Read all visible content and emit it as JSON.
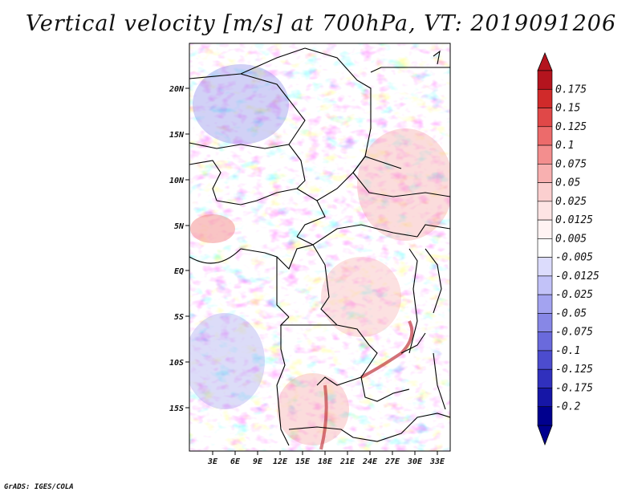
{
  "title": "Vertical velocity [m/s] at 700hPa, VT: 2019091206",
  "footer": "GrADS: IGES/COLA",
  "map": {
    "lat_labels": [
      "20N",
      "15N",
      "10N",
      "5N",
      "EQ",
      "5S",
      "10S",
      "15S"
    ],
    "lon_labels": [
      "3E",
      "6E",
      "9E",
      "12E",
      "15E",
      "18E",
      "21E",
      "24E",
      "27E",
      "30E",
      "33E"
    ]
  },
  "colorbar": {
    "levels": [
      "0.175",
      "0.15",
      "0.125",
      "0.1",
      "0.075",
      "0.05",
      "0.025",
      "0.0125",
      "0.005",
      "-0.005",
      "-0.0125",
      "-0.025",
      "-0.05",
      "-0.075",
      "-0.1",
      "-0.125",
      "-0.175",
      "-0.2"
    ],
    "colors": [
      "#b4141e",
      "#d02a2a",
      "#e04848",
      "#ec6b6b",
      "#f38e8e",
      "#f8b0b0",
      "#fbcfcf",
      "#fde4e4",
      "#fff3f3",
      "#ffffff",
      "#dcdcfc",
      "#c2c2f8",
      "#a3a3f0",
      "#8787e6",
      "#6a6adc",
      "#4c4cce",
      "#3030bd",
      "#1616a6",
      "#00008e"
    ]
  }
}
